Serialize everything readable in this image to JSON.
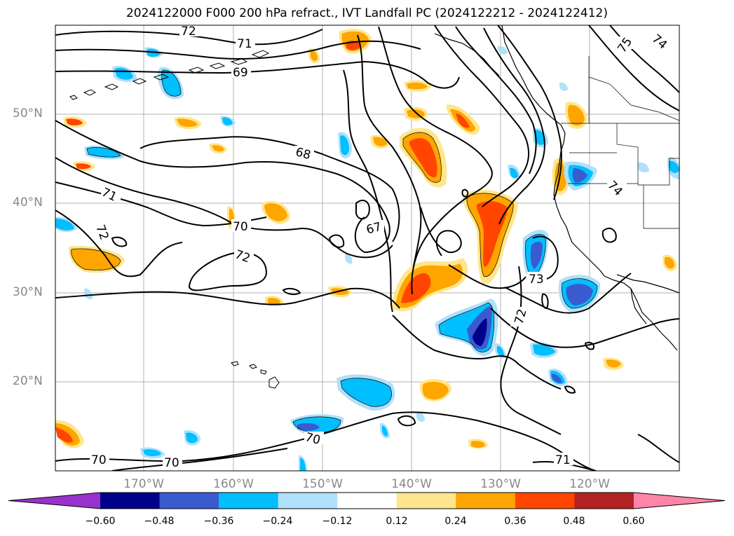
{
  "title": "2024122000 F000 200 hPa refract., IVT Landfall PC (2024122212 - 2024122412)",
  "map": {
    "lat_labels": [
      "50°N",
      "40°N",
      "30°N",
      "20°N"
    ],
    "lon_labels": [
      "170°W",
      "160°W",
      "150°W",
      "140°W",
      "130°W",
      "120°W"
    ],
    "gridlines": true,
    "contour_labels": [
      "72",
      "71",
      "69",
      "75",
      "74",
      "68",
      "71",
      "72",
      "70",
      "67",
      "72",
      "74",
      "73",
      "72",
      "70",
      "70",
      "70",
      "71"
    ]
  },
  "colorbar": {
    "ticks": [
      "−0.60",
      "−0.48",
      "−0.36",
      "−0.24",
      "−0.12",
      "0.12",
      "0.24",
      "0.36",
      "0.48",
      "0.60"
    ],
    "colors": [
      "#9932cc",
      "#00008b",
      "#3a5bd0",
      "#00bfff",
      "#b0e0fa",
      "#ffffff",
      "#ffe68c",
      "#ffa500",
      "#ff4500",
      "#b22222",
      "#ff85a8"
    ],
    "extend": "both"
  }
}
